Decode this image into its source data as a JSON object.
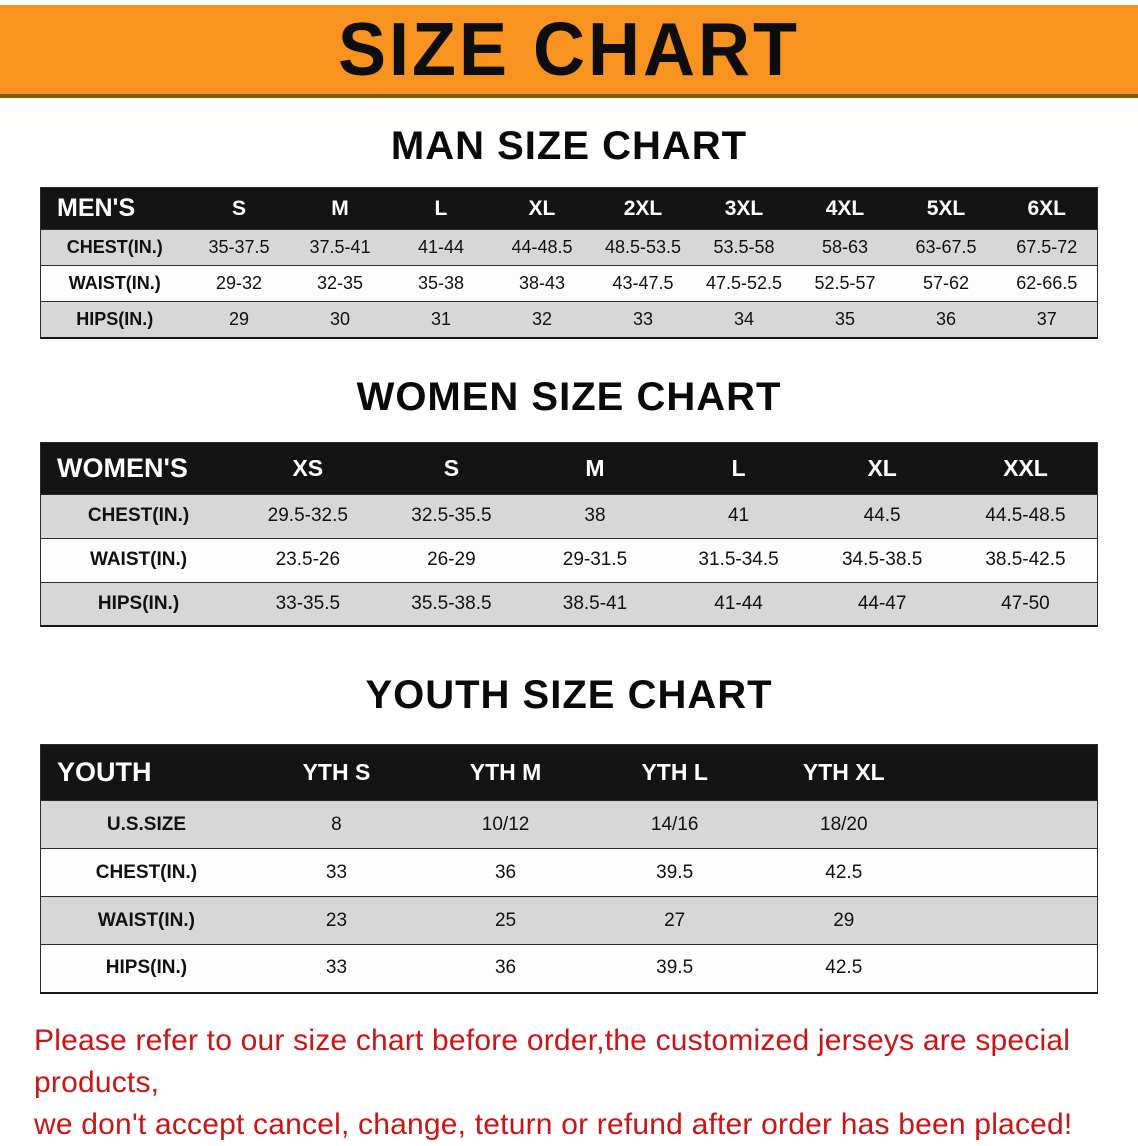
{
  "banner": {
    "title": "SIZE CHART",
    "bg_color": "#f7931e",
    "text_color": "#0d0d0d"
  },
  "sections": [
    {
      "id": "men",
      "heading": "MAN SIZE CHART",
      "columns": [
        "MEN'S",
        "S",
        "M",
        "L",
        "XL",
        "2XL",
        "3XL",
        "4XL",
        "5XL",
        "6XL"
      ],
      "rows": [
        [
          "CHEST(IN.)",
          "35-37.5",
          "37.5-41",
          "41-44",
          "44-48.5",
          "48.5-53.5",
          "53.5-58",
          "58-63",
          "63-67.5",
          "67.5-72"
        ],
        [
          "WAIST(IN.)",
          "29-32",
          "32-35",
          "35-38",
          "38-43",
          "43-47.5",
          "47.5-52.5",
          "52.5-57",
          "57-62",
          "62-66.5"
        ],
        [
          "HIPS(IN.)",
          "29",
          "30",
          "31",
          "32",
          "33",
          "34",
          "35",
          "36",
          "37"
        ]
      ]
    },
    {
      "id": "women",
      "heading": "WOMEN SIZE CHART",
      "columns": [
        "WOMEN'S",
        "XS",
        "S",
        "M",
        "L",
        "XL",
        "XXL"
      ],
      "rows": [
        [
          "CHEST(IN.)",
          "29.5-32.5",
          "32.5-35.5",
          "38",
          "41",
          "44.5",
          "44.5-48.5"
        ],
        [
          "WAIST(IN.)",
          "23.5-26",
          "26-29",
          "29-31.5",
          "31.5-34.5",
          "34.5-38.5",
          "38.5-42.5"
        ],
        [
          "HIPS(IN.)",
          "33-35.5",
          "35.5-38.5",
          "38.5-41",
          "41-44",
          "44-47",
          "47-50"
        ]
      ]
    },
    {
      "id": "youth",
      "heading": "YOUTH SIZE CHART",
      "columns": [
        "YOUTH",
        "YTH S",
        "YTH M",
        "YTH L",
        "YTH XL"
      ],
      "rows": [
        [
          "U.S.SIZE",
          "8",
          "10/12",
          "14/16",
          "18/20"
        ],
        [
          "CHEST(IN.)",
          "33",
          "36",
          "39.5",
          "42.5"
        ],
        [
          "WAIST(IN.)",
          "23",
          "25",
          "27",
          "29"
        ],
        [
          "HIPS(IN.)",
          "33",
          "36",
          "39.5",
          "42.5"
        ]
      ]
    }
  ],
  "table_colors": {
    "header_bg": "#141414",
    "header_text": "#ffffff",
    "row_gray": "#d7d7d7",
    "row_white": "#fdfdfd"
  },
  "disclaimer": {
    "color": "#cc1414",
    "lines": [
      "Please refer to our size chart before order,the customized jerseys are special products,",
      "we don't accept cancel, change, teturn or refund after order has been placed!"
    ]
  }
}
